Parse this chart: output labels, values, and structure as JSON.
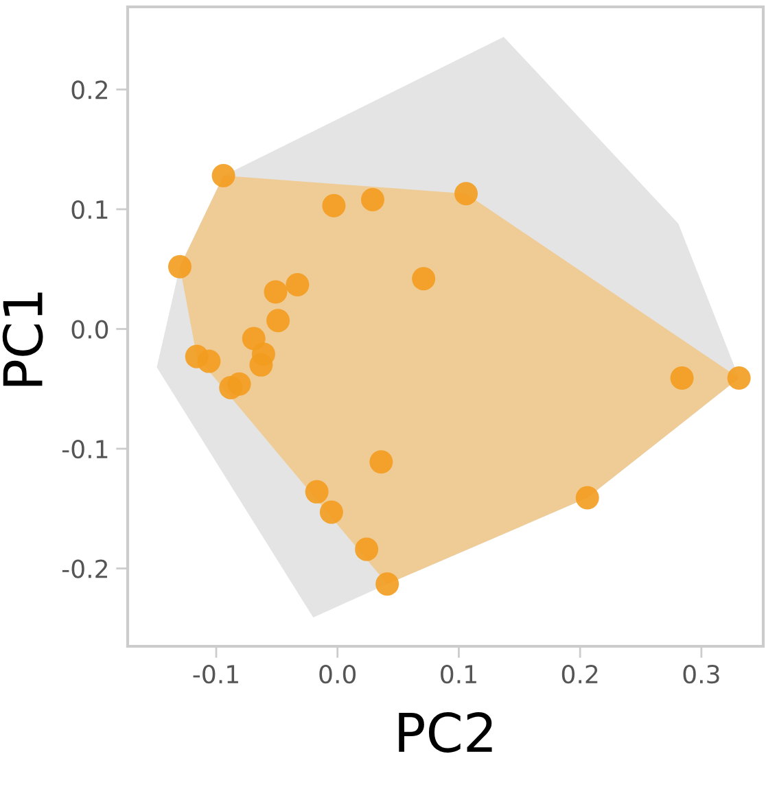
{
  "chart_data": {
    "type": "scatter",
    "xlabel": "PC2",
    "ylabel": "PC1",
    "xlim": [
      -0.173,
      0.351
    ],
    "ylim": [
      -0.265,
      0.269
    ],
    "xticks": [
      -0.1,
      {
        "value": 0,
        "label": "0.0"
      },
      0.1,
      0.2,
      0.3
    ],
    "yticks": [
      -0.2,
      -0.1,
      {
        "value": 0,
        "label": "0.0"
      },
      0.1,
      0.2
    ],
    "grid": false,
    "series": [
      {
        "type": "area",
        "color": "#e4e4e4",
        "x": [
          0.137,
          0.281,
          0.331,
          0.206,
          0.041,
          -0.02,
          -0.149,
          -0.13,
          -0.094
        ],
        "values": [
          0.244,
          0.088,
          -0.041,
          -0.141,
          -0.213,
          -0.241,
          -0.032,
          0.052,
          0.128
        ]
      },
      {
        "type": "area",
        "color": "#efcc96",
        "x": [
          -0.094,
          0.106,
          0.331,
          0.206,
          0.041,
          -0.116,
          -0.13
        ],
        "values": [
          0.128,
          0.113,
          -0.041,
          -0.141,
          -0.213,
          -0.023,
          0.052
        ]
      },
      {
        "type": "scatter",
        "marker": "circle",
        "color": "#f39c1f",
        "x": [
          -0.094,
          -0.003,
          0.029,
          0.106,
          -0.13,
          0.071,
          -0.051,
          -0.033,
          -0.049,
          -0.069,
          -0.061,
          -0.063,
          -0.116,
          -0.106,
          -0.088,
          -0.081,
          0.036,
          -0.017,
          -0.005,
          0.024,
          0.041,
          0.284,
          0.331,
          0.206
        ],
        "values": [
          0.128,
          0.103,
          0.108,
          0.113,
          0.052,
          0.042,
          0.031,
          0.037,
          0.007,
          -0.008,
          -0.021,
          -0.03,
          -0.023,
          -0.027,
          -0.049,
          -0.046,
          -0.111,
          -0.136,
          -0.153,
          -0.184,
          -0.213,
          -0.041,
          -0.041,
          -0.141
        ]
      }
    ]
  }
}
